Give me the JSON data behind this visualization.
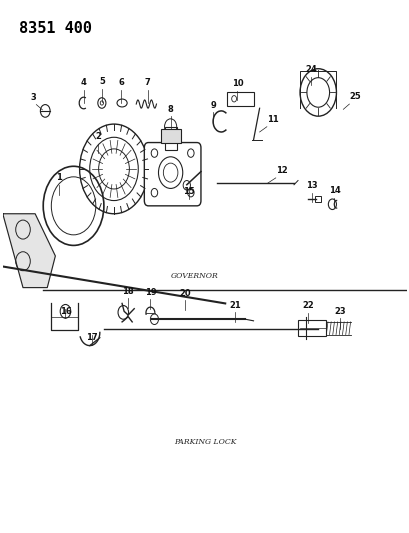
{
  "title": "8351 400",
  "background_color": "#ffffff",
  "fig_width": 4.1,
  "fig_height": 5.33,
  "dpi": 100,
  "governor_label": "GOVERNOR",
  "parking_lock_label": "PARKING LOCK",
  "gray": "#222222",
  "light_gray": "#cccccc",
  "label_fs": 6.0,
  "label_color": "#111111"
}
